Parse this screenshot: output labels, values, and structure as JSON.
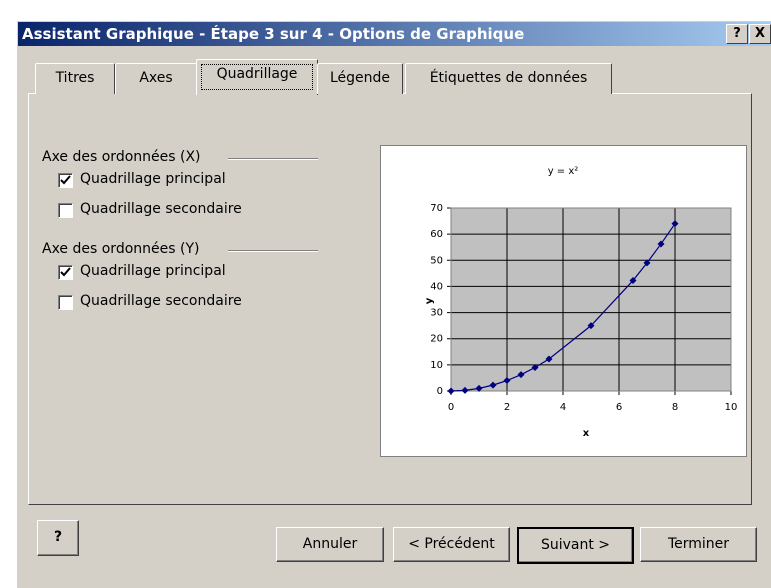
{
  "window": {
    "title": "Assistant Graphique - Étape 3 sur 4 - Options de Graphique",
    "buttons": [
      "?",
      "X"
    ]
  },
  "tabs": [
    "Titres",
    "Axes",
    "Quadrillage",
    "Légende",
    "Étiquettes de données"
  ],
  "active_tab": 2,
  "groups": [
    {
      "label": "Axe des ordonnées (X)",
      "options": [
        {
          "label": "Quadrillage principal",
          "checked": true
        },
        {
          "label": "Quadrillage secondaire",
          "checked": false
        }
      ]
    },
    {
      "label": "Axe des ordonnées (Y)",
      "options": [
        {
          "label": "Quadrillage principal",
          "checked": true
        },
        {
          "label": "Quadrillage secondaire",
          "checked": false
        }
      ]
    }
  ],
  "help_button": "?",
  "buttons": [
    "Annuler",
    "< Précédent",
    "Suivant >",
    "Terminer"
  ],
  "chart_data": {
    "type": "scatter",
    "title": "y = x²",
    "x_label": "x",
    "y_label": "y",
    "x": [
      0,
      0.5,
      1,
      1.5,
      2,
      2.5,
      3,
      3.5,
      5,
      6.5,
      7,
      7.5,
      8
    ],
    "series": [
      {
        "name": "y",
        "color": "#000080",
        "values": [
          0,
          0.25,
          1,
          2.25,
          4,
          6.25,
          9,
          12.25,
          25,
          42.25,
          49,
          56.25,
          64
        ]
      }
    ],
    "xlim": [
      0,
      10
    ],
    "xticks": [
      0,
      2,
      4,
      6,
      8,
      10
    ],
    "ylim": [
      0,
      70
    ],
    "yticks": [
      0,
      10,
      20,
      30,
      40,
      50,
      60,
      70
    ],
    "grid": true,
    "plot_color": "#c0c0c0"
  }
}
